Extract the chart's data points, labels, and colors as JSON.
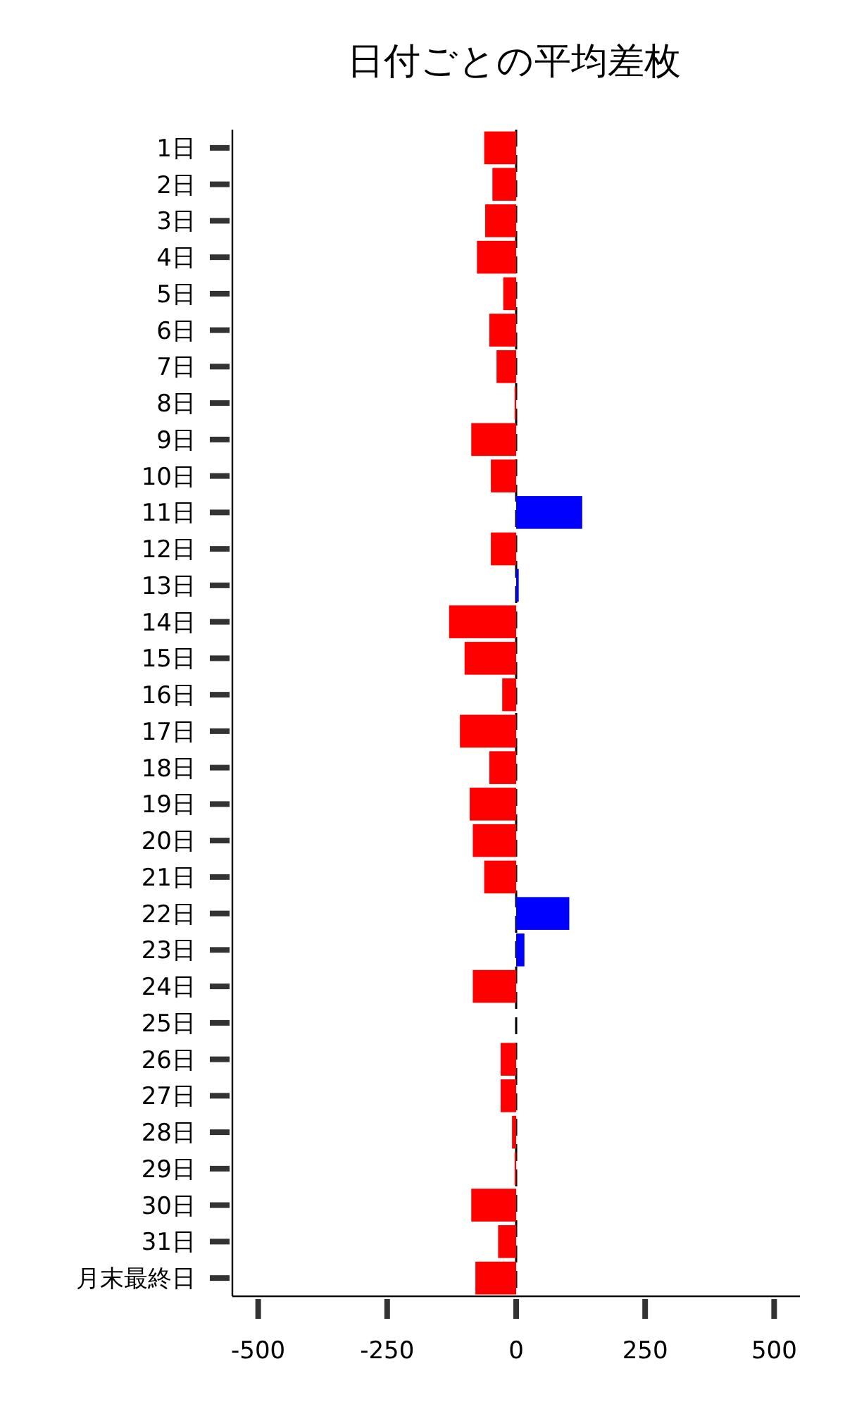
{
  "chart_data": {
    "type": "bar",
    "orientation": "horizontal",
    "title": "日付ごとの平均差枚",
    "categories": [
      "1日",
      "2日",
      "3日",
      "4日",
      "5日",
      "6日",
      "7日",
      "8日",
      "9日",
      "10日",
      "11日",
      "12日",
      "13日",
      "14日",
      "15日",
      "16日",
      "17日",
      "18日",
      "19日",
      "20日",
      "21日",
      "22日",
      "23日",
      "24日",
      "25日",
      "26日",
      "27日",
      "28日",
      "29日",
      "30日",
      "31日",
      "月末最終日"
    ],
    "values": [
      -62,
      -46,
      -60,
      -76,
      -25,
      -52,
      -38,
      -3,
      -87,
      -49,
      128,
      -49,
      5,
      -130,
      -100,
      -27,
      -109,
      -52,
      -90,
      -84,
      -62,
      103,
      16,
      -84,
      0,
      -30,
      -30,
      -8,
      -3,
      -87,
      -35,
      -79
    ],
    "colors": [
      "#ff0000",
      "#ff0000",
      "#ff0000",
      "#ff0000",
      "#ff0000",
      "#ff0000",
      "#ff0000",
      "#ff0000",
      "#ff0000",
      "#ff0000",
      "#0000ff",
      "#ff0000",
      "#0000ff",
      "#ff0000",
      "#ff0000",
      "#ff0000",
      "#ff0000",
      "#ff0000",
      "#ff0000",
      "#ff0000",
      "#ff0000",
      "#0000ff",
      "#0000ff",
      "#ff0000",
      "#ff0000",
      "#ff0000",
      "#ff0000",
      "#ff0000",
      "#ff0000",
      "#ff0000",
      "#ff0000",
      "#ff0000"
    ],
    "xlim": [
      -550,
      550
    ],
    "xticks": [
      -500,
      -250,
      0,
      250,
      500
    ],
    "ref_lines": [
      {
        "axis": "x",
        "value": 0,
        "color": "#000000",
        "line_style": "dashed"
      }
    ]
  }
}
